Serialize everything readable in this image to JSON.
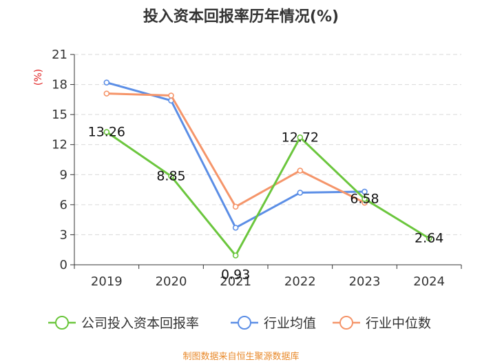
{
  "title": "投入资本回报率历年情况(%)",
  "source": "制图数据来自恒生聚源数据库",
  "chart_data": {
    "type": "line",
    "title": "投入资本回报率历年情况(%)",
    "ylabel": "(%)",
    "xlabel": "",
    "categories": [
      "2019",
      "2020",
      "2021",
      "2022",
      "2023",
      "2024"
    ],
    "ylim": [
      0,
      21
    ],
    "yticks": [
      0,
      3,
      6,
      9,
      12,
      15,
      18,
      21
    ],
    "grid": true,
    "legend_position": "bottom",
    "series": [
      {
        "name": "公司投入资本回报率",
        "color": "#6bc63d",
        "values": [
          13.26,
          8.85,
          0.93,
          12.72,
          6.58,
          2.64
        ],
        "labels": [
          "13.26",
          "8.85",
          "0.93",
          "12.72",
          "6.58",
          "2.64"
        ]
      },
      {
        "name": "行业均值",
        "color": "#5b8ee6",
        "values": [
          18.2,
          16.4,
          3.7,
          7.2,
          7.3,
          null
        ]
      },
      {
        "name": "行业中位数",
        "color": "#f5956a",
        "values": [
          17.1,
          16.9,
          5.8,
          9.4,
          6.2,
          null
        ]
      }
    ]
  }
}
